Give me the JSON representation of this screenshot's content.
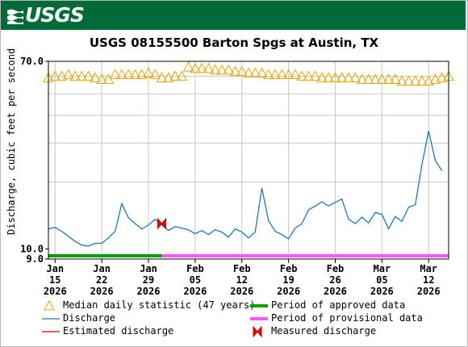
{
  "header": {
    "logo_text": "USGS"
  },
  "chart_data": {
    "type": "line",
    "title": "USGS 08155500 Barton Spgs at Austin, TX",
    "ylabel": "Discharge, cubic feet per second",
    "y_tick_labels": [
      "70.0",
      "10.0",
      "9.0"
    ],
    "y_scale": "log",
    "ylim": [
      9.0,
      70.0
    ],
    "x_range": [
      "2026-01-14",
      "2026-03-15"
    ],
    "x_ticks": [
      {
        "date": "2026-01-15",
        "label_month": "Jan",
        "label_day": "15",
        "label_year": "2026"
      },
      {
        "date": "2026-01-22",
        "label_month": "Jan",
        "label_day": "22",
        "label_year": "2026"
      },
      {
        "date": "2026-01-29",
        "label_month": "Jan",
        "label_day": "29",
        "label_year": "2026"
      },
      {
        "date": "2026-02-05",
        "label_month": "Feb",
        "label_day": "05",
        "label_year": "2026"
      },
      {
        "date": "2026-02-12",
        "label_month": "Feb",
        "label_day": "12",
        "label_year": "2026"
      },
      {
        "date": "2026-02-19",
        "label_month": "Feb",
        "label_day": "19",
        "label_year": "2026"
      },
      {
        "date": "2026-02-26",
        "label_month": "Feb",
        "label_day": "26",
        "label_year": "2026"
      },
      {
        "date": "2026-03-05",
        "label_month": "Mar",
        "label_day": "05",
        "label_year": "2026"
      },
      {
        "date": "2026-03-12",
        "label_month": "Mar",
        "label_day": "12",
        "label_year": "2026"
      }
    ],
    "grid": true,
    "series": [
      {
        "name": "Median daily statistic (47 years)",
        "marker": "triangle",
        "color": "#e6a600",
        "points": [
          [
            "2026-01-14",
            59
          ],
          [
            "2026-01-15",
            60
          ],
          [
            "2026-01-16",
            60
          ],
          [
            "2026-01-17",
            61
          ],
          [
            "2026-01-18",
            60
          ],
          [
            "2026-01-19",
            60
          ],
          [
            "2026-01-20",
            60
          ],
          [
            "2026-01-21",
            59
          ],
          [
            "2026-01-22",
            58
          ],
          [
            "2026-01-23",
            58
          ],
          [
            "2026-01-24",
            61
          ],
          [
            "2026-01-25",
            61
          ],
          [
            "2026-01-26",
            61
          ],
          [
            "2026-01-27",
            61
          ],
          [
            "2026-01-28",
            61
          ],
          [
            "2026-01-29",
            62
          ],
          [
            "2026-01-30",
            61
          ],
          [
            "2026-01-31",
            59
          ],
          [
            "2026-02-01",
            59
          ],
          [
            "2026-02-02",
            60
          ],
          [
            "2026-02-03",
            60
          ],
          [
            "2026-02-04",
            66
          ],
          [
            "2026-02-05",
            65
          ],
          [
            "2026-02-06",
            65
          ],
          [
            "2026-02-07",
            65
          ],
          [
            "2026-02-08",
            64
          ],
          [
            "2026-02-09",
            64
          ],
          [
            "2026-02-10",
            64
          ],
          [
            "2026-02-11",
            63
          ],
          [
            "2026-02-12",
            63
          ],
          [
            "2026-02-13",
            62
          ],
          [
            "2026-02-14",
            62
          ],
          [
            "2026-02-15",
            62
          ],
          [
            "2026-02-16",
            61
          ],
          [
            "2026-02-17",
            61
          ],
          [
            "2026-02-18",
            61
          ],
          [
            "2026-02-19",
            61
          ],
          [
            "2026-02-20",
            61
          ],
          [
            "2026-02-21",
            60
          ],
          [
            "2026-02-22",
            60
          ],
          [
            "2026-02-23",
            60
          ],
          [
            "2026-02-24",
            59
          ],
          [
            "2026-02-25",
            59
          ],
          [
            "2026-02-26",
            59
          ],
          [
            "2026-02-27",
            59
          ],
          [
            "2026-02-28",
            59
          ],
          [
            "2026-03-01",
            59
          ],
          [
            "2026-03-02",
            58
          ],
          [
            "2026-03-03",
            58
          ],
          [
            "2026-03-04",
            58
          ],
          [
            "2026-03-05",
            58
          ],
          [
            "2026-03-06",
            58
          ],
          [
            "2026-03-07",
            58
          ],
          [
            "2026-03-08",
            57
          ],
          [
            "2026-03-09",
            57
          ],
          [
            "2026-03-10",
            57
          ],
          [
            "2026-03-11",
            57
          ],
          [
            "2026-03-12",
            57
          ],
          [
            "2026-03-13",
            58
          ],
          [
            "2026-03-14",
            59
          ],
          [
            "2026-03-15",
            60
          ]
        ]
      },
      {
        "name": "Discharge",
        "color": "#1f78b4",
        "points": [
          [
            "2026-01-14",
            12.3
          ],
          [
            "2026-01-15",
            12.5
          ],
          [
            "2026-01-16",
            12.0
          ],
          [
            "2026-01-17",
            11.4
          ],
          [
            "2026-01-18",
            10.8
          ],
          [
            "2026-01-19",
            10.4
          ],
          [
            "2026-01-20",
            10.3
          ],
          [
            "2026-01-21",
            10.6
          ],
          [
            "2026-01-22",
            10.6
          ],
          [
            "2026-01-23",
            11.2
          ],
          [
            "2026-01-24",
            12.0
          ],
          [
            "2026-01-25",
            16.0
          ],
          [
            "2026-01-26",
            13.8
          ],
          [
            "2026-01-27",
            13.0
          ],
          [
            "2026-01-28",
            12.3
          ],
          [
            "2026-01-29",
            12.8
          ],
          [
            "2026-01-30",
            13.6
          ],
          [
            "2026-01-31",
            12.8
          ],
          [
            "2026-02-01",
            12.1
          ],
          [
            "2026-02-02",
            12.6
          ],
          [
            "2026-02-03",
            12.4
          ],
          [
            "2026-02-04",
            12.2
          ],
          [
            "2026-02-05",
            11.7
          ],
          [
            "2026-02-06",
            12.1
          ],
          [
            "2026-02-07",
            11.6
          ],
          [
            "2026-02-08",
            12.2
          ],
          [
            "2026-02-09",
            11.9
          ],
          [
            "2026-02-10",
            11.3
          ],
          [
            "2026-02-11",
            12.3
          ],
          [
            "2026-02-12",
            11.9
          ],
          [
            "2026-02-13",
            11.2
          ],
          [
            "2026-02-14",
            11.9
          ],
          [
            "2026-02-15",
            18.8
          ],
          [
            "2026-02-16",
            13.4
          ],
          [
            "2026-02-17",
            12.0
          ],
          [
            "2026-02-18",
            11.6
          ],
          [
            "2026-02-19",
            11.1
          ],
          [
            "2026-02-20",
            12.4
          ],
          [
            "2026-02-21",
            13.0
          ],
          [
            "2026-02-22",
            15.0
          ],
          [
            "2026-02-23",
            15.6
          ],
          [
            "2026-02-24",
            16.3
          ],
          [
            "2026-02-25",
            15.6
          ],
          [
            "2026-02-26",
            16.2
          ],
          [
            "2026-02-27",
            16.8
          ],
          [
            "2026-02-28",
            13.6
          ],
          [
            "2026-03-01",
            13.0
          ],
          [
            "2026-03-02",
            13.9
          ],
          [
            "2026-03-03",
            13.1
          ],
          [
            "2026-03-04",
            14.6
          ],
          [
            "2026-03-05",
            14.3
          ],
          [
            "2026-03-06",
            12.3
          ],
          [
            "2026-03-07",
            14.0
          ],
          [
            "2026-03-08",
            13.3
          ],
          [
            "2026-03-09",
            15.4
          ],
          [
            "2026-03-10",
            15.8
          ],
          [
            "2026-03-11",
            24.0
          ],
          [
            "2026-03-12",
            34.0
          ],
          [
            "2026-03-13",
            25.0
          ],
          [
            "2026-03-14",
            22.5
          ]
        ]
      },
      {
        "name": "Measured discharge",
        "marker": "bowtie",
        "color": "#ff0000",
        "points": [
          [
            "2026-01-31",
            13.0
          ]
        ]
      }
    ],
    "periods": [
      {
        "name": "Period of approved data",
        "color": "#00a000",
        "start": "2026-01-14",
        "end": "2026-01-31"
      },
      {
        "name": "Period of provisional data",
        "color": "#ff55ff",
        "start": "2026-01-31",
        "end": "2026-03-15"
      }
    ],
    "legend": [
      {
        "label": "Median daily statistic (47 years)",
        "symbol": "triangle",
        "color": "#e6a600"
      },
      {
        "label": "Period of approved data",
        "symbol": "bar",
        "color": "#00a000"
      },
      {
        "label": "Discharge",
        "symbol": "line",
        "color": "#1f78b4"
      },
      {
        "label": "Period of provisional data",
        "symbol": "bar",
        "color": "#ff55ff"
      },
      {
        "label": "Estimated discharge",
        "symbol": "line",
        "color": "#cc0000"
      },
      {
        "label": "Measured discharge",
        "symbol": "bowtie",
        "color": "#ff0000"
      }
    ]
  }
}
